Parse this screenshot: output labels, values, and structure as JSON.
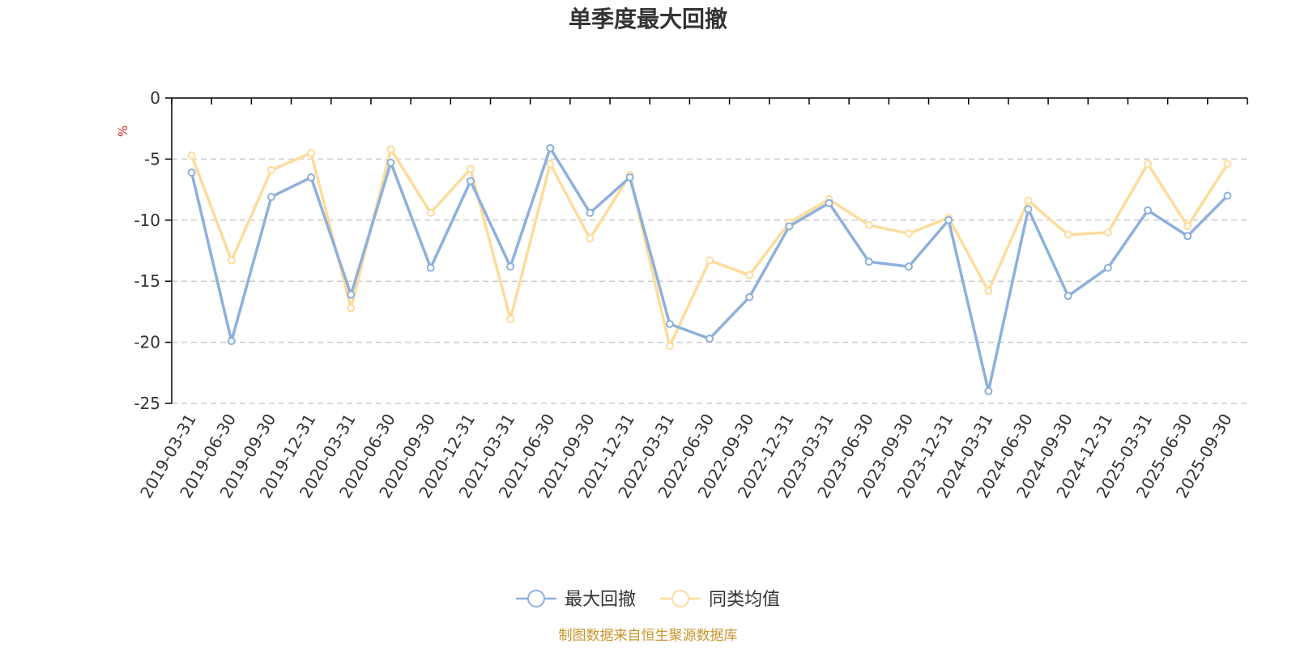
{
  "chart_data": {
    "type": "line",
    "title": "单季度最大回撤",
    "unit_label": "%",
    "ylim": [
      -25,
      0
    ],
    "yticks": [
      0,
      -5,
      -10,
      -15,
      -20,
      -25
    ],
    "grid": true,
    "legend_position": "bottom-center",
    "categories": [
      "2019-03-31",
      "2019-06-30",
      "2019-09-30",
      "2019-12-31",
      "2020-03-31",
      "2020-06-30",
      "2020-09-30",
      "2020-12-31",
      "2021-03-31",
      "2021-06-30",
      "2021-09-30",
      "2021-12-31",
      "2022-03-31",
      "2022-06-30",
      "2022-09-30",
      "2022-12-31",
      "2023-03-31",
      "2023-06-30",
      "2023-09-30",
      "2023-12-31",
      "2024-03-31",
      "2024-06-30",
      "2024-09-30",
      "2024-12-31",
      "2025-03-31",
      "2025-06-30",
      "2025-09-30"
    ],
    "series": [
      {
        "name": "最大回撤",
        "color": "#8eb0dc",
        "values": [
          -6.1,
          -19.9,
          -8.1,
          -6.5,
          -16.1,
          -5.3,
          -13.9,
          -6.8,
          -13.8,
          -4.1,
          -9.4,
          -6.5,
          -18.5,
          -19.7,
          -16.3,
          -10.5,
          -8.6,
          -13.4,
          -13.8,
          -10.0,
          -24.0,
          -9.1,
          -16.2,
          -13.9,
          -9.2,
          -11.3,
          -8.0
        ]
      },
      {
        "name": "同类均值",
        "color": "#fddc9b",
        "values": [
          -4.7,
          -13.3,
          -5.9,
          -4.5,
          -17.2,
          -4.2,
          -9.4,
          -5.8,
          -18.1,
          -5.4,
          -11.5,
          -6.3,
          -20.3,
          -13.3,
          -14.5,
          -10.2,
          -8.3,
          -10.4,
          -11.1,
          -9.8,
          -15.8,
          -8.4,
          -11.2,
          -11.0,
          -5.4,
          -10.5,
          -5.4
        ]
      }
    ],
    "source_text": "制图数据来自恒生聚源数据库",
    "source_color": "#c8952c",
    "unit_color": "#e02020",
    "axis_color": "#000000",
    "grid_color": "#cccccc"
  }
}
